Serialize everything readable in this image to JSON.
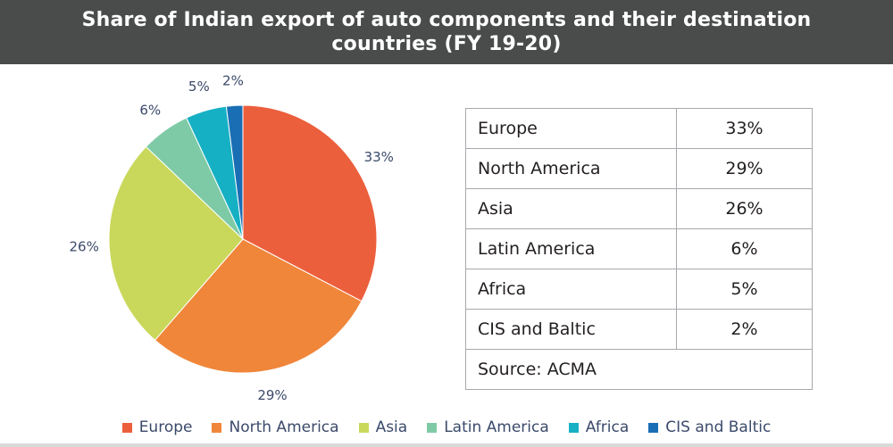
{
  "header": {
    "title_line1": "Share of Indian export of auto components and their destination",
    "title_line2": "countries (FY 19-20)"
  },
  "chart_data": {
    "type": "pie",
    "title": "Share of Indian export of auto components and their destination countries (FY 19-20)",
    "categories": [
      "Europe",
      "North America",
      "Asia",
      "Latin America",
      "Africa",
      "CIS and Baltic"
    ],
    "values": [
      33,
      29,
      26,
      6,
      5,
      2
    ],
    "labels": [
      "33%",
      "29%",
      "26%",
      "6%",
      "5%",
      "2%"
    ],
    "colors": [
      "#ec5f3d",
      "#f0863a",
      "#c9d85b",
      "#7fcaa6",
      "#16b0c4",
      "#1a6fb4"
    ],
    "legend_position": "bottom"
  },
  "table": {
    "rows": [
      {
        "region": "Europe",
        "share": "33%"
      },
      {
        "region": "North America",
        "share": "29%"
      },
      {
        "region": "Asia",
        "share": "26%"
      },
      {
        "region": "Latin America",
        "share": "6%"
      },
      {
        "region": "Africa",
        "share": "5%"
      },
      {
        "region": "CIS and Baltic",
        "share": "2%"
      }
    ],
    "source": "Source: ACMA"
  }
}
